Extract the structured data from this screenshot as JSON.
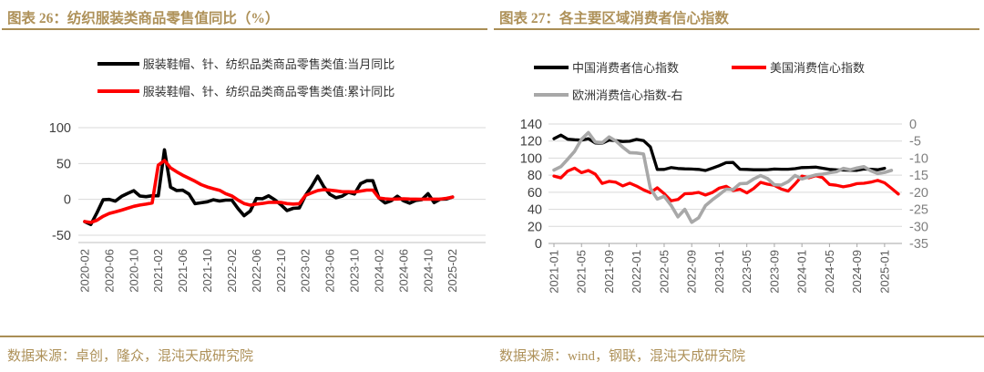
{
  "page": {
    "sources": {
      "left": "数据来源：卓创，隆众，混沌天成研究院",
      "right": "数据来源：wind，钢联，混沌天成研究院"
    },
    "colors": {
      "accent_gold": "#AE9159",
      "series_black": "#000000",
      "series_red": "#FF0000",
      "series_gray": "#A8A8A8",
      "gridline": "#D9D9D9",
      "axis_label_dark": "#404040",
      "axis_label_gray": "#7F7F7F",
      "tick_label": "#595959"
    }
  },
  "chart_data": [
    {
      "type": "line",
      "title": "图表 26：纺织服装类商品零售值同比（%）",
      "grid": true,
      "legend_position": "top",
      "ylim": [
        -50,
        100
      ],
      "yticks": [
        100,
        50,
        0,
        -50
      ],
      "x": [
        "2020-02",
        "2020-03",
        "2020-04",
        "2020-05",
        "2020-06",
        "2020-07",
        "2020-08",
        "2020-09",
        "2020-10",
        "2020-11",
        "2020-12",
        "2021-01",
        "2021-02",
        "2021-03",
        "2021-04",
        "2021-05",
        "2021-06",
        "2021-07",
        "2021-08",
        "2021-09",
        "2021-10",
        "2021-11",
        "2021-12",
        "2022-01",
        "2022-02",
        "2022-03",
        "2022-04",
        "2022-05",
        "2022-06",
        "2022-07",
        "2022-08",
        "2022-09",
        "2022-10",
        "2022-11",
        "2022-12",
        "2023-01",
        "2023-02",
        "2023-03",
        "2023-04",
        "2023-05",
        "2023-06",
        "2023-07",
        "2023-08",
        "2023-09",
        "2023-10",
        "2023-11",
        "2023-12",
        "2024-01",
        "2024-02",
        "2024-03",
        "2024-04",
        "2024-05",
        "2024-06",
        "2024-07",
        "2024-08",
        "2024-09",
        "2024-10",
        "2024-11",
        "2024-12",
        "2025-01",
        "2025-02"
      ],
      "x_tick_labels": [
        "2020-02",
        "2020-06",
        "2020-10",
        "2021-02",
        "2021-06",
        "2021-10",
        "2022-02",
        "2022-06",
        "2022-10",
        "2023-02",
        "2023-06",
        "2023-10",
        "2024-02",
        "2024-06",
        "2024-10",
        "2025-02"
      ],
      "series": [
        {
          "name": "服装鞋帽、针、纺织品类商品零售类值:当月同比",
          "color": "#000000",
          "axis": "left",
          "values": [
            -31,
            -35,
            -18.5,
            -0.6,
            -0.1,
            -2.5,
            4.2,
            8.3,
            12.2,
            4.6,
            3.8,
            5,
            5,
            69.1,
            17,
            12.3,
            12.8,
            7.5,
            -6,
            -4.8,
            -3.3,
            -0.5,
            -2.3,
            -1,
            -1,
            -12.7,
            -22.8,
            -16.2,
            1.2,
            0.8,
            5.1,
            -0.5,
            -7.5,
            -15.6,
            -12.5,
            -12,
            5.4,
            17.7,
            32.4,
            17.6,
            6.9,
            2.3,
            4.5,
            9.9,
            7.5,
            22,
            26,
            26,
            1.9,
            -5,
            -2,
            4.4,
            -1.9,
            -5.2,
            -1.6,
            -0.4,
            8,
            -4.5,
            0.3,
            0.5,
            3.3
          ]
        },
        {
          "name": "服装鞋帽、针、纺织品类商品零售类值:累计同比",
          "color": "#FF0000",
          "axis": "left",
          "values": [
            -30.9,
            -32.2,
            -29,
            -23.5,
            -19.6,
            -17.5,
            -15,
            -12.4,
            -9.7,
            -7.9,
            -6.6,
            -5,
            47.6,
            54.2,
            44,
            38.5,
            33.7,
            29.5,
            25.3,
            20.6,
            17.3,
            14.8,
            12.7,
            8,
            4.8,
            -0.9,
            -5.8,
            -8.1,
            -6.5,
            -5.6,
            -4.2,
            -4,
            -4.3,
            -5.9,
            -6.5,
            -6,
            5.4,
            9,
            12.3,
            13.5,
            12.8,
            11.9,
            10.6,
            10.6,
            10.2,
            11.5,
            12.9,
            12.9,
            1.9,
            0.9,
            0.2,
            0.5,
            0.8,
            0.5,
            0.3,
            0.2,
            0.5,
            0.3,
            0.3,
            1.5,
            3.3
          ]
        }
      ]
    },
    {
      "type": "line",
      "title": "图表 27：各主要区域消费者信心指数",
      "grid": true,
      "legend_position": "top",
      "ylim_left": [
        0,
        140
      ],
      "yticks_left": [
        140,
        120,
        100,
        80,
        60,
        40,
        20,
        0
      ],
      "ylim_right": [
        -35,
        0
      ],
      "yticks_right": [
        0,
        -5,
        -10,
        -15,
        -20,
        -25,
        -30,
        -35
      ],
      "x": [
        "2021-01",
        "2021-02",
        "2021-03",
        "2021-04",
        "2021-05",
        "2021-06",
        "2021-07",
        "2021-08",
        "2021-09",
        "2021-10",
        "2021-11",
        "2021-12",
        "2022-01",
        "2022-02",
        "2022-03",
        "2022-04",
        "2022-05",
        "2022-06",
        "2022-07",
        "2022-08",
        "2022-09",
        "2022-10",
        "2022-11",
        "2022-12",
        "2023-01",
        "2023-02",
        "2023-03",
        "2023-04",
        "2023-05",
        "2023-06",
        "2023-07",
        "2023-08",
        "2023-09",
        "2023-10",
        "2023-11",
        "2023-12",
        "2024-01",
        "2024-02",
        "2024-03",
        "2024-04",
        "2024-05",
        "2024-06",
        "2024-07",
        "2024-08",
        "2024-09",
        "2024-10",
        "2024-11",
        "2024-12",
        "2025-01",
        "2025-02",
        "2025-03"
      ],
      "x_tick_labels": [
        "2021-01",
        "2021-05",
        "2021-09",
        "2022-01",
        "2022-05",
        "2022-09",
        "2023-01",
        "2023-05",
        "2023-09",
        "2024-01",
        "2024-05",
        "2024-09",
        "2025-01"
      ],
      "series": [
        {
          "name": "中国消费者信心指数",
          "color": "#000000",
          "axis": "left",
          "values": [
            122.8,
            127,
            122.2,
            121.5,
            121.1,
            122.8,
            117.8,
            117.5,
            121.2,
            120.4,
            119.5,
            119.8,
            121.9,
            120.5,
            113.2,
            86.7,
            86.8,
            88.9,
            87.9,
            87.4,
            87.2,
            86.8,
            85.5,
            88.3,
            91.2,
            94.7,
            94.9,
            87,
            86.8,
            86.4,
            86.4,
            86.5,
            87.2,
            87,
            87,
            87.6,
            88.9,
            89.1,
            89.4,
            88.2,
            86.8,
            86.2,
            86,
            85.8,
            85.7,
            87.2,
            86.9,
            86.4,
            88.1,
            null,
            null
          ]
        },
        {
          "name": "美国消费信心指数",
          "color": "#FF0000",
          "axis": "left",
          "values": [
            79,
            76.8,
            84.9,
            88.3,
            82.9,
            85.5,
            81.2,
            70.3,
            72.8,
            71.7,
            67.4,
            70.6,
            67.2,
            62.8,
            59.4,
            65.2,
            58.4,
            50,
            51.5,
            58.2,
            58.6,
            59.9,
            56.8,
            59.7,
            64.9,
            67,
            62,
            63.5,
            59.2,
            64.4,
            71.6,
            69.5,
            68.1,
            63.8,
            61.3,
            69.7,
            79,
            76.9,
            79.4,
            77.2,
            69.1,
            68.2,
            66.4,
            67.9,
            70.1,
            70.5,
            71.8,
            74,
            71.1,
            64.7,
            57.9
          ]
        },
        {
          "name": "欧洲消费信心指数-右",
          "color": "#A8A8A8",
          "axis": "right",
          "values": [
            -13.5,
            -12.5,
            -10.3,
            -8,
            -4.5,
            -2.5,
            -5.3,
            -5.5,
            -3.8,
            -5,
            -6.8,
            -8.4,
            -8.5,
            -8.8,
            -18.9,
            -22,
            -21.2,
            -23.8,
            -27.2,
            -25,
            -28.8,
            -27.5,
            -23.9,
            -22.2,
            -20.7,
            -19.1,
            -19.2,
            -17.5,
            -17.4,
            -16.1,
            -15.1,
            -16,
            -17.8,
            -17.9,
            -16.9,
            -15.1,
            -16.1,
            -15.5,
            -14.9,
            -14.7,
            -14.3,
            -14,
            -13,
            -13.4,
            -12.9,
            -12.5,
            -13.7,
            -14.5,
            -14.2,
            -13.6,
            null
          ]
        }
      ]
    }
  ]
}
